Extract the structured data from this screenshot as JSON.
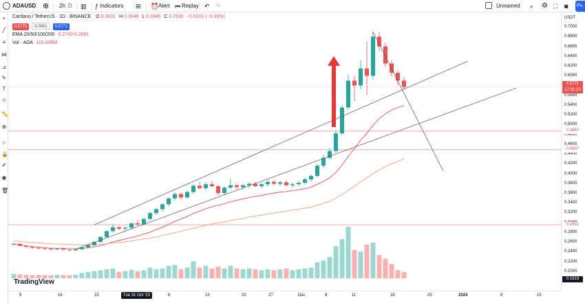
{
  "toolbar": {
    "symbol": "ADAUSD",
    "interval": "2h",
    "interval_d": "D",
    "indicators": "Indicators",
    "alert": "Alert",
    "replay": "Replay",
    "layout_name": "Unnamed",
    "publish": "Pu"
  },
  "legend": {
    "title": "Cardano / TetherUS · 1D · BINANCE",
    "o_label": "O",
    "o_val": "0.3031",
    "h_label": "H",
    "h_val": "0.3048",
    "l_label": "L",
    "l_val": "0.2845",
    "c_label": "C",
    "c_val": "0.2930",
    "change": "−0.0101 (−3.33%)",
    "sell_box": "0.5770",
    "spread_box": "0.0001",
    "buy_box": "0.5771",
    "ema_label": "EMA 20/50/100/200",
    "ema_vals": "0.2749  0.2691",
    "vol_label": "Vol · ADA",
    "vol_val": "115.848M"
  },
  "price_axis": {
    "currency": "USDT",
    "ticks": [
      "0.7000",
      "0.6800",
      "0.6600",
      "0.6400",
      "0.6200",
      "0.6000",
      "0.5600",
      "0.5400",
      "0.5200",
      "0.5000",
      "0.4800",
      "0.4600",
      "0.4400",
      "0.4200",
      "0.4000",
      "0.3800",
      "0.3600",
      "0.3400",
      "0.3200",
      "0.3000",
      "0.2800",
      "0.2600",
      "0.2400",
      "0.2200",
      "0.2000",
      "0.1800"
    ],
    "tag_last": "0.5771",
    "tag_countdown": "17:31:10",
    "tag_level1": "0.4867",
    "tag_level2": "0.4487",
    "tag_level3": "0.2951",
    "tag_vol": "0.1919"
  },
  "time_axis": {
    "labels": [
      "9",
      "16",
      "23",
      "6",
      "13",
      "20",
      "27",
      "Dec",
      "6",
      "11",
      "18",
      "25",
      "2024",
      "8",
      "15"
    ],
    "highlight": "Tue 31 Oct '23"
  },
  "watermark": "TradingView",
  "chart_data": {
    "type": "candlestick",
    "ylim": [
      0.18,
      0.71
    ],
    "up_color": "#26a69a",
    "down_color": "#ef5350",
    "candles": [
      [
        0.255,
        0.258,
        0.252,
        0.256
      ],
      [
        0.256,
        0.257,
        0.251,
        0.252
      ],
      [
        0.252,
        0.254,
        0.248,
        0.25
      ],
      [
        0.25,
        0.252,
        0.246,
        0.248
      ],
      [
        0.248,
        0.25,
        0.245,
        0.247
      ],
      [
        0.247,
        0.249,
        0.244,
        0.246
      ],
      [
        0.246,
        0.248,
        0.243,
        0.245
      ],
      [
        0.245,
        0.247,
        0.243,
        0.246
      ],
      [
        0.246,
        0.248,
        0.244,
        0.244
      ],
      [
        0.244,
        0.246,
        0.242,
        0.243
      ],
      [
        0.243,
        0.246,
        0.241,
        0.245
      ],
      [
        0.245,
        0.25,
        0.243,
        0.249
      ],
      [
        0.249,
        0.254,
        0.247,
        0.253
      ],
      [
        0.253,
        0.262,
        0.251,
        0.26
      ],
      [
        0.26,
        0.272,
        0.258,
        0.27
      ],
      [
        0.27,
        0.285,
        0.268,
        0.282
      ],
      [
        0.282,
        0.296,
        0.279,
        0.29
      ],
      [
        0.29,
        0.293,
        0.284,
        0.287
      ],
      [
        0.287,
        0.292,
        0.282,
        0.289
      ],
      [
        0.289,
        0.3,
        0.286,
        0.298
      ],
      [
        0.298,
        0.305,
        0.293,
        0.296
      ],
      [
        0.296,
        0.31,
        0.294,
        0.307
      ],
      [
        0.307,
        0.322,
        0.304,
        0.319
      ],
      [
        0.319,
        0.33,
        0.315,
        0.327
      ],
      [
        0.327,
        0.34,
        0.322,
        0.337
      ],
      [
        0.337,
        0.352,
        0.333,
        0.349
      ],
      [
        0.349,
        0.362,
        0.345,
        0.358
      ],
      [
        0.358,
        0.361,
        0.347,
        0.351
      ],
      [
        0.351,
        0.366,
        0.348,
        0.362
      ],
      [
        0.362,
        0.378,
        0.358,
        0.375
      ],
      [
        0.375,
        0.383,
        0.368,
        0.37
      ],
      [
        0.37,
        0.382,
        0.365,
        0.378
      ],
      [
        0.378,
        0.385,
        0.371,
        0.374
      ],
      [
        0.374,
        0.376,
        0.355,
        0.36
      ],
      [
        0.36,
        0.374,
        0.356,
        0.371
      ],
      [
        0.371,
        0.39,
        0.368,
        0.376
      ],
      [
        0.376,
        0.38,
        0.366,
        0.372
      ],
      [
        0.372,
        0.379,
        0.367,
        0.376
      ],
      [
        0.376,
        0.382,
        0.37,
        0.379
      ],
      [
        0.379,
        0.383,
        0.372,
        0.374
      ],
      [
        0.374,
        0.381,
        0.37,
        0.378
      ],
      [
        0.378,
        0.386,
        0.374,
        0.383
      ],
      [
        0.383,
        0.387,
        0.376,
        0.379
      ],
      [
        0.379,
        0.385,
        0.375,
        0.382
      ],
      [
        0.382,
        0.386,
        0.373,
        0.376
      ],
      [
        0.376,
        0.382,
        0.371,
        0.378
      ],
      [
        0.378,
        0.385,
        0.374,
        0.381
      ],
      [
        0.381,
        0.392,
        0.378,
        0.388
      ],
      [
        0.388,
        0.398,
        0.383,
        0.395
      ],
      [
        0.395,
        0.42,
        0.392,
        0.416
      ],
      [
        0.416,
        0.438,
        0.412,
        0.432
      ],
      [
        0.432,
        0.452,
        0.428,
        0.446
      ],
      [
        0.446,
        0.489,
        0.442,
        0.482
      ],
      [
        0.482,
        0.54,
        0.478,
        0.535
      ],
      [
        0.535,
        0.602,
        0.53,
        0.59
      ],
      [
        0.59,
        0.6,
        0.548,
        0.58
      ],
      [
        0.58,
        0.632,
        0.572,
        0.615
      ],
      [
        0.615,
        0.67,
        0.56,
        0.6
      ],
      [
        0.6,
        0.69,
        0.592,
        0.68
      ],
      [
        0.68,
        0.69,
        0.65,
        0.66
      ],
      [
        0.66,
        0.668,
        0.618,
        0.625
      ],
      [
        0.625,
        0.632,
        0.598,
        0.606
      ],
      [
        0.606,
        0.612,
        0.58,
        0.59
      ],
      [
        0.59,
        0.598,
        0.572,
        0.577
      ]
    ],
    "volumes": [
      0.25,
      0.22,
      0.2,
      0.18,
      0.2,
      0.18,
      0.17,
      0.2,
      0.18,
      0.17,
      0.2,
      0.3,
      0.35,
      0.4,
      0.45,
      0.5,
      0.55,
      0.35,
      0.4,
      0.48,
      0.4,
      0.45,
      0.6,
      0.5,
      0.55,
      0.7,
      0.75,
      0.5,
      0.6,
      0.95,
      0.6,
      0.7,
      0.55,
      0.65,
      0.55,
      0.7,
      0.55,
      0.5,
      0.55,
      0.5,
      0.45,
      0.5,
      0.45,
      0.5,
      0.55,
      0.45,
      0.5,
      0.55,
      0.6,
      0.9,
      1.0,
      1.2,
      1.8,
      2.2,
      2.9,
      1.6,
      1.5,
      1.9,
      2.0,
      1.3,
      1.1,
      0.8,
      0.45,
      0.35
    ],
    "ema_fast": [
      0.256,
      0.254,
      0.252,
      0.25,
      0.249,
      0.248,
      0.247,
      0.247,
      0.247,
      0.246,
      0.246,
      0.247,
      0.248,
      0.25,
      0.252,
      0.256,
      0.26,
      0.263,
      0.266,
      0.269,
      0.272,
      0.276,
      0.28,
      0.285,
      0.29,
      0.296,
      0.302,
      0.307,
      0.312,
      0.318,
      0.323,
      0.328,
      0.332,
      0.335,
      0.338,
      0.342,
      0.345,
      0.348,
      0.351,
      0.353,
      0.355,
      0.358,
      0.36,
      0.362,
      0.363,
      0.365,
      0.367,
      0.369,
      0.372,
      0.378,
      0.384,
      0.391,
      0.402,
      0.417,
      0.435,
      0.451,
      0.468,
      0.482,
      0.499,
      0.512,
      0.522,
      0.53,
      0.535,
      0.539
    ],
    "ema_slow": [
      0.262,
      0.261,
      0.26,
      0.259,
      0.258,
      0.257,
      0.256,
      0.256,
      0.255,
      0.255,
      0.254,
      0.254,
      0.254,
      0.254,
      0.255,
      0.256,
      0.258,
      0.259,
      0.26,
      0.262,
      0.264,
      0.266,
      0.268,
      0.27,
      0.273,
      0.276,
      0.279,
      0.282,
      0.285,
      0.288,
      0.291,
      0.294,
      0.297,
      0.299,
      0.301,
      0.304,
      0.306,
      0.308,
      0.311,
      0.313,
      0.315,
      0.317,
      0.319,
      0.321,
      0.323,
      0.325,
      0.327,
      0.329,
      0.331,
      0.335,
      0.339,
      0.343,
      0.35,
      0.357,
      0.366,
      0.374,
      0.383,
      0.391,
      0.4,
      0.407,
      0.414,
      0.42,
      0.425,
      0.43
    ]
  }
}
